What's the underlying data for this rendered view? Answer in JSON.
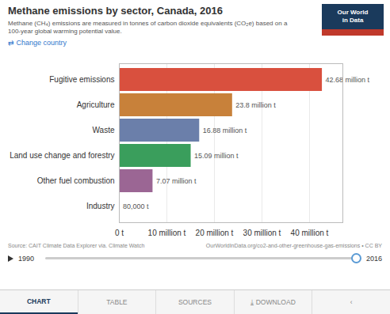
{
  "chart_data": {
    "type": "bar",
    "orientation": "horizontal",
    "title": "Methane emissions by sector, Canada, 2016",
    "subtitle": "Methane (CH₄) emissions are measured in tonnes of carbon dioxide equivalents (CO₂e) based on a\n100-year global warming potential value.",
    "annotations": [
      "⇄ Change country",
      "Our World\nin Data",
      "Source: CAIT Climate Data Explorer via. Climate Watch",
      "OurWorldInData.org/co2-and-other-greenhouse-gas-emissions • CC BY",
      "1990",
      "2016",
      "CHART",
      "TABLE",
      "SOURCES",
      "⤓ DOWNLOAD",
      "‹"
    ],
    "categories": [
      "Fugitive emissions",
      "Agriculture",
      "Waste",
      "Land use change and forestry",
      "Other fuel combustion",
      "Industry"
    ],
    "values": [
      42.68,
      23.8,
      16.88,
      15.09,
      7.07,
      0.08
    ],
    "value_labels": [
      "42.68 million t",
      "23.8 million t",
      "16.88 million t",
      "15.09 million t",
      "7.07 million t",
      "80,000 t"
    ],
    "colors": [
      "#d9503e",
      "#c8813a",
      "#6b7faa",
      "#3a9e5c",
      "#9b6694",
      "#b0b0b0"
    ],
    "xlim": [
      0,
      47
    ],
    "xticks": [
      {
        "value": 0,
        "label": "0 t"
      },
      {
        "value": 10,
        "label": "10 million t"
      },
      {
        "value": 20,
        "label": "20 million t"
      },
      {
        "value": 30,
        "label": "30 million t"
      },
      {
        "value": 40,
        "label": "40 million t"
      }
    ],
    "grid": true,
    "data_labels": true
  }
}
